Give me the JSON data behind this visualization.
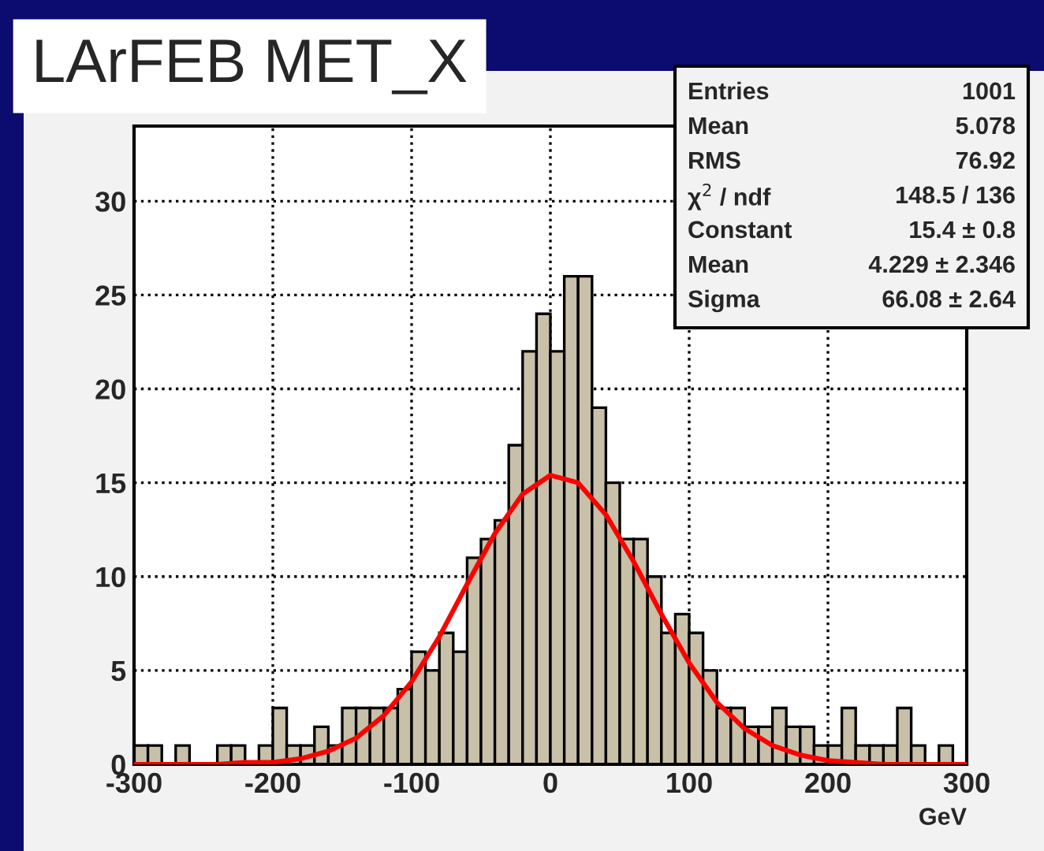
{
  "chart_data": {
    "type": "histogram",
    "title": "LArFEB MET_X",
    "xlabel": "GeV",
    "bins": [
      -300,
      -290,
      -280,
      -270,
      -260,
      -250,
      -240,
      -230,
      -220,
      -210,
      -200,
      -190,
      -180,
      -170,
      -160,
      -150,
      -140,
      -130,
      -120,
      -110,
      -100,
      -90,
      -80,
      -70,
      -60,
      -50,
      -40,
      -30,
      -20,
      -10,
      0,
      10,
      20,
      30,
      40,
      50,
      60,
      70,
      80,
      90,
      100,
      110,
      120,
      130,
      140,
      150,
      160,
      170,
      180,
      190,
      200,
      210,
      220,
      230,
      240,
      250,
      260,
      270,
      280,
      290,
      300
    ],
    "values": [
      1,
      1,
      0,
      1,
      0,
      0,
      1,
      1,
      0,
      1,
      3,
      1,
      1,
      2,
      1,
      3,
      3,
      3,
      3,
      4,
      6,
      5,
      7,
      6,
      11,
      12,
      13,
      17,
      22,
      24,
      22,
      26,
      26,
      19,
      15,
      12,
      12,
      10,
      7,
      8,
      7,
      5,
      3,
      3,
      2,
      2,
      3,
      2,
      2,
      1,
      1,
      3,
      1,
      1,
      1,
      3,
      1,
      0,
      1,
      0
    ],
    "color": "#c8c0a8",
    "series": [
      {
        "type": "line",
        "color": "#ff0000",
        "x": [
          -300,
          -260,
          -240,
          -220,
          -200,
          -180,
          -160,
          -140,
          -120,
          -100,
          -80,
          -60,
          -40,
          -20,
          0,
          20,
          40,
          60,
          80,
          100,
          120,
          140,
          160,
          180,
          200,
          220,
          240,
          260,
          300
        ],
        "values": [
          0,
          0,
          0,
          0.1,
          0.1,
          0.3,
          0.7,
          1.4,
          2.6,
          4.4,
          6.8,
          9.6,
          12.3,
          14.4,
          15.4,
          15.0,
          13.3,
          10.8,
          8.0,
          5.4,
          3.3,
          1.9,
          1.0,
          0.5,
          0.2,
          0.1,
          0,
          0,
          0
        ]
      }
    ],
    "xlim": [
      -300,
      300
    ],
    "xticks": [
      -300,
      -200,
      -100,
      0,
      100,
      200,
      300
    ],
    "ylim": [
      0,
      34
    ],
    "yticks": [
      0,
      5,
      10,
      15,
      20,
      25,
      30
    ],
    "grid": true,
    "annotations": [
      "Entries",
      "1001",
      "Mean",
      "5.078",
      "RMS",
      "76.92",
      "χ$^{2}$ / ndf",
      "148.5 / 136",
      "Constant",
      "15.4 ± 0.8",
      "Mean",
      "4.229 ± 2.346",
      "Sigma",
      "66.08 ± 2.64"
    ]
  }
}
